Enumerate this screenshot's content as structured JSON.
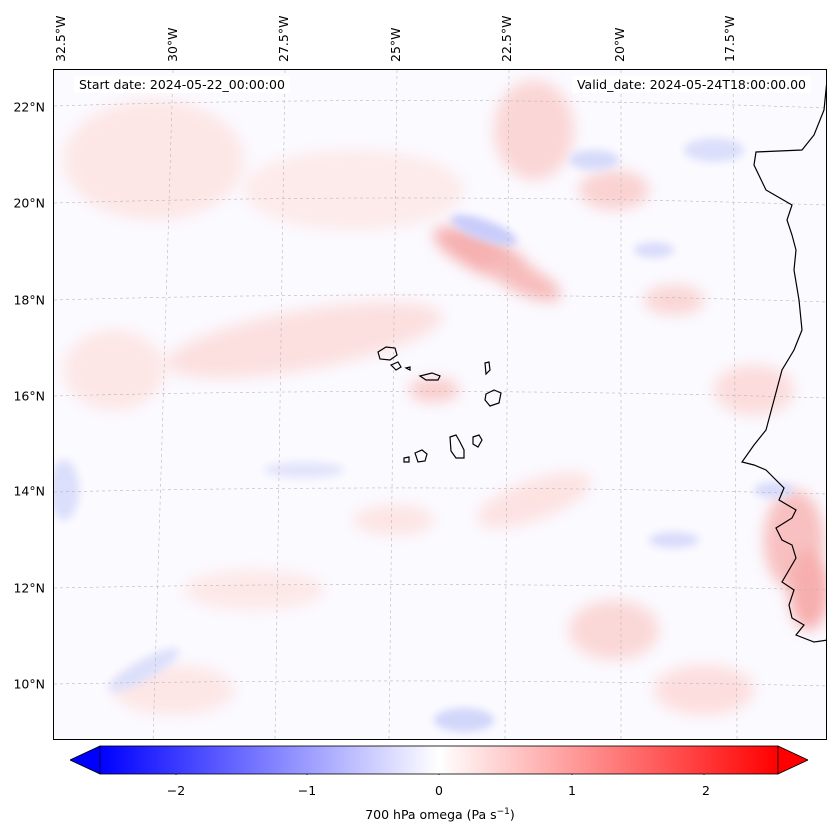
{
  "header": {
    "start_date": "Start date: 2024-05-22_00:00:00",
    "valid_date": "Valid_date: 2024-05-24T18:00:00.00"
  },
  "map": {
    "lon_labels": [
      "32.5°W",
      "30°W",
      "27.5°W",
      "25°W",
      "22.5°W",
      "20°W",
      "17.5°W"
    ],
    "lat_labels": [
      "22°N",
      "20°N",
      "18°N",
      "16°N",
      "14°N",
      "12°N",
      "10°N"
    ],
    "field": "omega",
    "level": "700 hPa",
    "features": [
      "cabo-verde-islands",
      "west-africa-coastline"
    ]
  },
  "colorbar": {
    "ticks": [
      "−2",
      "−1",
      "0",
      "1",
      "2"
    ],
    "label_prefix": "700 hPa omega (Pa s",
    "label_sup": "−1",
    "label_suffix": ")",
    "vmin": -2.6,
    "vmax": 2.6,
    "colors": {
      "low": "#0000ff",
      "mid": "#ffffff",
      "high": "#ff0000"
    }
  }
}
